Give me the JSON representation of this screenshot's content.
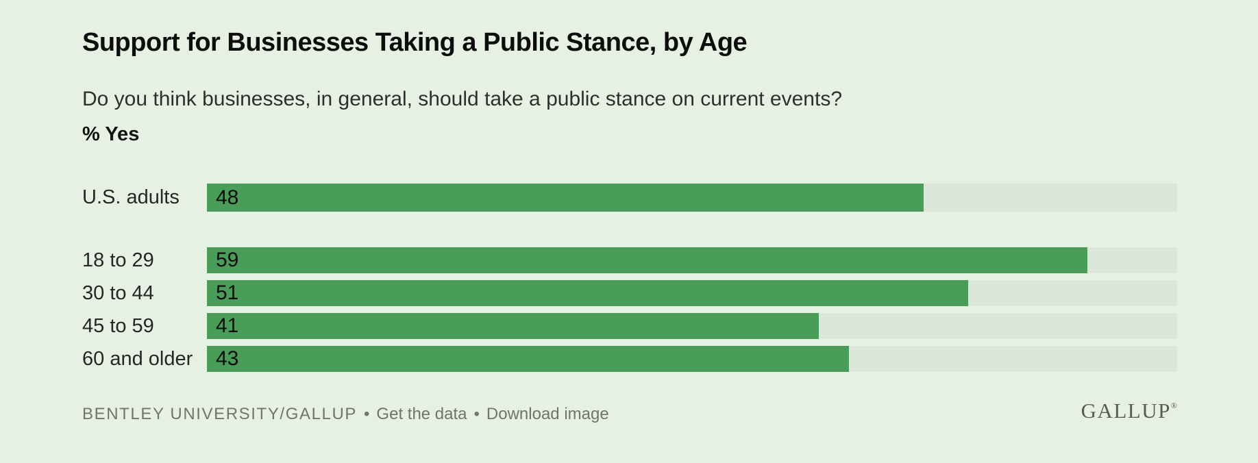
{
  "page": {
    "title": "Support for Businesses Taking a Public Stance, by Age",
    "subtitle": "Do you think businesses, in general, should take a public stance on current events?",
    "unit_label": "% Yes"
  },
  "chart_data": {
    "type": "bar",
    "orientation": "horizontal",
    "title": "Support for Businesses Taking a Public Stance, by Age",
    "subtitle": "Do you think businesses, in general, should take a public stance on current events?",
    "value_unit": "% Yes",
    "categories": [
      "U.S. adults",
      "18 to 29",
      "30 to 44",
      "45 to 59",
      "60 and older"
    ],
    "values": [
      48,
      59,
      51,
      41,
      43
    ],
    "scale_max": 65,
    "xlim": [
      0,
      65
    ],
    "grid": false,
    "data_labels": "inside-left",
    "legend": "none",
    "colors": {
      "bar": "#4a9c59",
      "track": "#dde7d9",
      "background": "#e7f1e3"
    },
    "rows": [
      {
        "label": "U.S. adults",
        "value": "48"
      },
      {
        "label": "18 to 29",
        "value": "59"
      },
      {
        "label": "30 to 44",
        "value": "51"
      },
      {
        "label": "45 to 59",
        "value": "41"
      },
      {
        "label": "60 and older",
        "value": "43"
      }
    ]
  },
  "footer": {
    "source": "BENTLEY UNIVERSITY/GALLUP",
    "separator": "•",
    "links": [
      {
        "label": "Get the data"
      },
      {
        "label": "Download image"
      }
    ],
    "logo_text": "GALLUP",
    "logo_mark": "®"
  }
}
